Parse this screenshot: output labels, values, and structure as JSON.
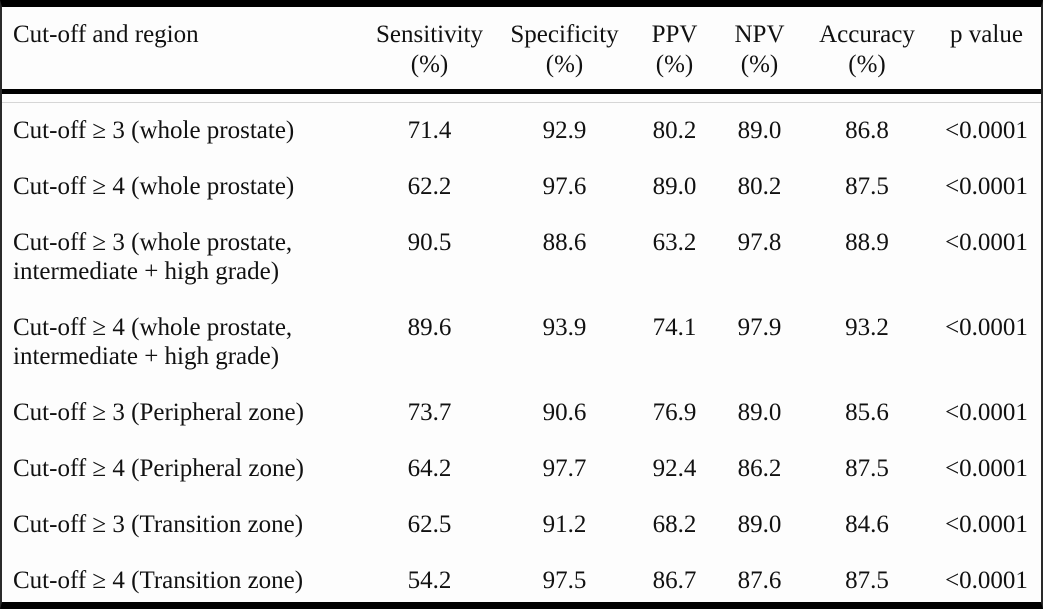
{
  "colors": {
    "border_heavy": "#000000",
    "border_side": "#2a2a2a",
    "thin_rule": "#d6d6d6",
    "text": "#111111",
    "background": "#fdfdfd"
  },
  "table": {
    "columns": [
      {
        "key": "region",
        "label": "Cut-off and region",
        "unit": ""
      },
      {
        "key": "sensitivity",
        "label": "Sensitivity",
        "unit": "(%)"
      },
      {
        "key": "specificity",
        "label": "Specificity",
        "unit": "(%)"
      },
      {
        "key": "ppv",
        "label": "PPV",
        "unit": "(%)"
      },
      {
        "key": "npv",
        "label": "NPV",
        "unit": "(%)"
      },
      {
        "key": "accuracy",
        "label": "Accuracy",
        "unit": "(%)"
      },
      {
        "key": "p_value",
        "label": "p value",
        "unit": ""
      }
    ],
    "rows": [
      {
        "region": "Cut-off ≥ 3 (whole prostate)",
        "sensitivity": "71.4",
        "specificity": "92.9",
        "ppv": "80.2",
        "npv": "89.0",
        "accuracy": "86.8",
        "p_value": "<0.0001"
      },
      {
        "region": "Cut-off ≥ 4 (whole prostate)",
        "sensitivity": "62.2",
        "specificity": "97.6",
        "ppv": "89.0",
        "npv": "80.2",
        "accuracy": "87.5",
        "p_value": "<0.0001"
      },
      {
        "region": "Cut-off ≥ 3 (whole prostate, intermediate + high grade)",
        "sensitivity": "90.5",
        "specificity": "88.6",
        "ppv": "63.2",
        "npv": "97.8",
        "accuracy": "88.9",
        "p_value": "<0.0001"
      },
      {
        "region": "Cut-off ≥ 4 (whole prostate, intermediate + high grade)",
        "sensitivity": "89.6",
        "specificity": "93.9",
        "ppv": "74.1",
        "npv": "97.9",
        "accuracy": "93.2",
        "p_value": "<0.0001"
      },
      {
        "region": "Cut-off ≥ 3 (Peripheral zone)",
        "sensitivity": "73.7",
        "specificity": "90.6",
        "ppv": "76.9",
        "npv": "89.0",
        "accuracy": "85.6",
        "p_value": "<0.0001"
      },
      {
        "region": "Cut-off ≥ 4 (Peripheral zone)",
        "sensitivity": "64.2",
        "specificity": "97.7",
        "ppv": "92.4",
        "npv": "86.2",
        "accuracy": "87.5",
        "p_value": "<0.0001"
      },
      {
        "region": "Cut-off ≥ 3 (Transition zone)",
        "sensitivity": "62.5",
        "specificity": "91.2",
        "ppv": "68.2",
        "npv": "89.0",
        "accuracy": "84.6",
        "p_value": "<0.0001"
      },
      {
        "region": "Cut-off ≥ 4 (Transition zone)",
        "sensitivity": "54.2",
        "specificity": "97.5",
        "ppv": "86.7",
        "npv": "87.6",
        "accuracy": "87.5",
        "p_value": "<0.0001"
      }
    ]
  }
}
